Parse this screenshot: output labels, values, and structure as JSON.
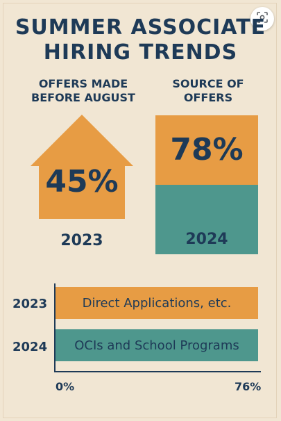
{
  "title_line1": "SUMMER ASSOCIATE",
  "title_line2": "HIRING TRENDS",
  "offers_panel": {
    "heading_line1": "OFFERS MADE",
    "heading_line2": "BEFORE AUGUST",
    "value": "45%",
    "year": "2023",
    "color": "#e79c44"
  },
  "source_panel": {
    "heading_line1": "SOURCE OF",
    "heading_line2": "OFFERS",
    "value": "78%",
    "year": "2024",
    "top_color": "#e79c44",
    "bottom_color": "#4e978d"
  },
  "bars": [
    {
      "year": "2023",
      "label": "Direct Applications, etc.",
      "color": "#e79c44"
    },
    {
      "year": "2024",
      "label": "OCIs and School Programs",
      "color": "#4e978d"
    }
  ],
  "axis": {
    "min_label": "0%",
    "max_label": "76%"
  },
  "icons": {
    "lens": "lens-search-icon"
  }
}
